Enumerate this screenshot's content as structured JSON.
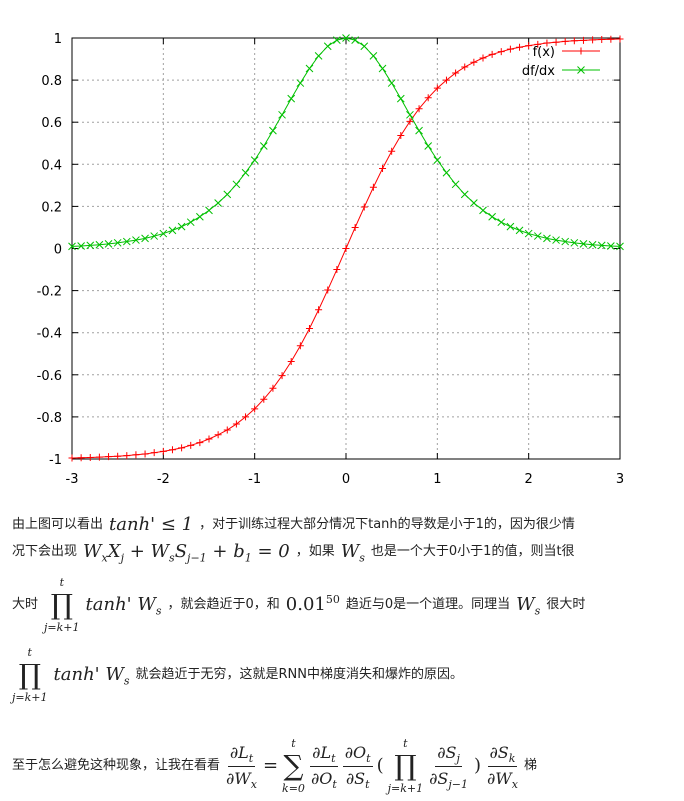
{
  "chart_data": {
    "type": "line",
    "xlim": [
      -3,
      3
    ],
    "ylim": [
      -1,
      1
    ],
    "x_ticks": [
      "-3",
      "-2",
      "-1",
      "0",
      "1",
      "2",
      "3"
    ],
    "y_ticks": [
      "-1",
      "-0.8",
      "-0.6",
      "-0.4",
      "-0.2",
      "0",
      "0.2",
      "0.4",
      "0.6",
      "0.8",
      "1"
    ],
    "grid": true,
    "legend_placement": "top-right",
    "x": [
      -3.0,
      -2.9,
      -2.8,
      -2.7,
      -2.6,
      -2.5,
      -2.4,
      -2.3,
      -2.2,
      -2.1,
      -2.0,
      -1.9,
      -1.8,
      -1.7,
      -1.6,
      -1.5,
      -1.4,
      -1.3,
      -1.2,
      -1.1,
      -1.0,
      -0.9,
      -0.8,
      -0.7,
      -0.6,
      -0.5,
      -0.4,
      -0.3,
      -0.2,
      -0.1,
      0.0,
      0.1,
      0.2,
      0.3,
      0.4,
      0.5,
      0.6,
      0.7,
      0.8,
      0.9,
      1.0,
      1.1,
      1.2,
      1.3,
      1.4,
      1.5,
      1.6,
      1.7,
      1.8,
      1.9,
      2.0,
      2.1,
      2.2,
      2.3,
      2.4,
      2.5,
      2.6,
      2.7,
      2.8,
      2.9,
      3.0
    ],
    "series": [
      {
        "name": "f(x)",
        "color": "#ff0000",
        "marker": "plus",
        "values": [
          -0.995,
          -0.994,
          -0.993,
          -0.991,
          -0.989,
          -0.987,
          -0.984,
          -0.98,
          -0.976,
          -0.97,
          -0.964,
          -0.956,
          -0.947,
          -0.935,
          -0.922,
          -0.905,
          -0.885,
          -0.862,
          -0.834,
          -0.8,
          -0.762,
          -0.716,
          -0.664,
          -0.604,
          -0.537,
          -0.462,
          -0.38,
          -0.291,
          -0.197,
          -0.1,
          0.0,
          0.1,
          0.197,
          0.291,
          0.38,
          0.462,
          0.537,
          0.604,
          0.664,
          0.716,
          0.762,
          0.8,
          0.834,
          0.862,
          0.885,
          0.905,
          0.922,
          0.935,
          0.947,
          0.956,
          0.964,
          0.97,
          0.976,
          0.98,
          0.984,
          0.987,
          0.989,
          0.991,
          0.993,
          0.994,
          0.995
        ]
      },
      {
        "name": "df/dx",
        "color": "#00c000",
        "marker": "cross",
        "values": [
          0.01,
          0.012,
          0.015,
          0.018,
          0.022,
          0.027,
          0.033,
          0.04,
          0.048,
          0.059,
          0.071,
          0.086,
          0.104,
          0.125,
          0.151,
          0.181,
          0.216,
          0.257,
          0.305,
          0.36,
          0.42,
          0.487,
          0.56,
          0.635,
          0.712,
          0.786,
          0.855,
          0.915,
          0.961,
          0.99,
          1.0,
          0.99,
          0.961,
          0.915,
          0.855,
          0.786,
          0.712,
          0.635,
          0.56,
          0.487,
          0.42,
          0.36,
          0.305,
          0.257,
          0.216,
          0.181,
          0.151,
          0.125,
          0.104,
          0.086,
          0.071,
          0.059,
          0.048,
          0.04,
          0.033,
          0.027,
          0.022,
          0.018,
          0.015,
          0.012,
          0.01
        ]
      }
    ]
  },
  "text": {
    "p1a": "由上图可以看出",
    "m1": "tanh' ≤ 1",
    "p1b": "，对于训练过程大部分情况下tanh的导数是小于1的，因为很少情",
    "p2a": "况下会出现",
    "m2": "W",
    "m2s": "x",
    "m2b": "X",
    "m2bs": "j",
    "m2c": " + W",
    "m2cs": "s",
    "m2d": "S",
    "m2ds": "j−1",
    "m2e": " + b",
    "m2es": "1",
    "m2f": " = 0",
    "p2b": "，如果",
    "m3": "W",
    "m3s": "s",
    "p2c": "也是一个大于0小于1的值，则当t很",
    "p3a": "大时",
    "prod_top": "t",
    "prod_sym": "∏",
    "prod_bot": "j=k+1",
    "m4": "tanh' W",
    "m4s": "s",
    "p3b": "，就会趋近于0，和",
    "m5": "0.01",
    "m5s": "50",
    "p3c": "趋近与0是一个道理。同理当",
    "m6": "W",
    "m6s": "s",
    "p3d": "很大时",
    "m7": "tanh' W",
    "m7s": "s",
    "p4": "就会趋近于无穷，这就是RNN中梯度消失和爆炸的原因。",
    "p5a": "至于怎么避免这种现象，让我在看看",
    "f1n": "∂L",
    "f1ns": "t",
    "f1d": "∂W",
    "f1ds": "x",
    "eq": "=",
    "sum_sym": "∑",
    "sum_top": "t",
    "sum_bot": "k=0",
    "f2n": "∂L",
    "f2ns": "t",
    "f2d": "∂O",
    "f2ds": "t",
    "f3n": "∂O",
    "f3ns": "t",
    "f3d": "∂S",
    "f3ds": "t",
    "lp": "(",
    "rp": ")",
    "f4n": "∂S",
    "f4ns": "j",
    "f4d": "∂S",
    "f4ds": "j−1",
    "f5n": "∂S",
    "f5ns": "k",
    "f5d": "∂W",
    "f5ds": "x",
    "p5b": "梯"
  }
}
